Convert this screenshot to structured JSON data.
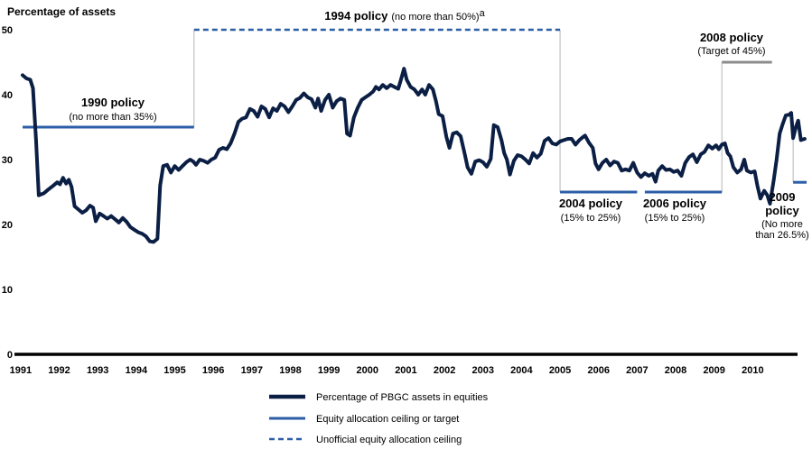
{
  "chart_data": {
    "type": "line",
    "ylabel": "Percentage of assets",
    "ylim": [
      0,
      50
    ],
    "yticks": [
      0,
      10,
      20,
      30,
      40,
      50
    ],
    "xlim": [
      1990.55,
      2010.5
    ],
    "year_labels": [
      "1991",
      "1992",
      "1993",
      "1994",
      "1995",
      "1996",
      "1997",
      "1998",
      "1999",
      "2000",
      "2001",
      "2002",
      "2003",
      "2004",
      "2005",
      "2006",
      "2007",
      "2008",
      "2009",
      "2010"
    ],
    "series": [
      {
        "name": "Percentage of PBGC assets in equities",
        "color": "#0b1f45",
        "points": [
          [
            1990.55,
            43.0
          ],
          [
            1990.65,
            42.5
          ],
          [
            1990.75,
            42.3
          ],
          [
            1990.82,
            41.0
          ],
          [
            1990.9,
            33.0
          ],
          [
            1990.97,
            24.5
          ],
          [
            1991.1,
            24.8
          ],
          [
            1991.2,
            25.3
          ],
          [
            1991.35,
            26.0
          ],
          [
            1991.45,
            26.5
          ],
          [
            1991.52,
            26.2
          ],
          [
            1991.6,
            27.2
          ],
          [
            1991.68,
            26.3
          ],
          [
            1991.75,
            26.9
          ],
          [
            1991.82,
            25.8
          ],
          [
            1991.9,
            22.8
          ],
          [
            1992.0,
            22.3
          ],
          [
            1992.1,
            21.8
          ],
          [
            1992.2,
            22.2
          ],
          [
            1992.3,
            22.9
          ],
          [
            1992.38,
            22.6
          ],
          [
            1992.45,
            20.5
          ],
          [
            1992.55,
            21.7
          ],
          [
            1992.65,
            21.3
          ],
          [
            1992.75,
            20.9
          ],
          [
            1992.85,
            21.3
          ],
          [
            1992.95,
            20.8
          ],
          [
            1993.05,
            20.3
          ],
          [
            1993.15,
            21.0
          ],
          [
            1993.25,
            20.4
          ],
          [
            1993.35,
            19.6
          ],
          [
            1993.45,
            19.2
          ],
          [
            1993.55,
            18.8
          ],
          [
            1993.65,
            18.6
          ],
          [
            1993.75,
            18.2
          ],
          [
            1993.85,
            17.4
          ],
          [
            1993.95,
            17.3
          ],
          [
            1994.05,
            17.8
          ],
          [
            1994.12,
            26.0
          ],
          [
            1994.2,
            29.0
          ],
          [
            1994.3,
            29.2
          ],
          [
            1994.4,
            28.0
          ],
          [
            1994.5,
            29.0
          ],
          [
            1994.6,
            28.4
          ],
          [
            1994.7,
            29.0
          ],
          [
            1994.8,
            29.6
          ],
          [
            1994.9,
            30.0
          ],
          [
            1994.98,
            29.7
          ],
          [
            1995.05,
            29.2
          ],
          [
            1995.15,
            30.0
          ],
          [
            1995.25,
            29.8
          ],
          [
            1995.35,
            29.5
          ],
          [
            1995.45,
            30.0
          ],
          [
            1995.55,
            30.3
          ],
          [
            1995.65,
            31.5
          ],
          [
            1995.75,
            31.8
          ],
          [
            1995.85,
            31.6
          ],
          [
            1995.95,
            32.5
          ],
          [
            1996.05,
            34.0
          ],
          [
            1996.15,
            35.8
          ],
          [
            1996.25,
            36.3
          ],
          [
            1996.35,
            36.5
          ],
          [
            1996.45,
            37.8
          ],
          [
            1996.55,
            37.5
          ],
          [
            1996.65,
            36.6
          ],
          [
            1996.75,
            38.2
          ],
          [
            1996.85,
            37.8
          ],
          [
            1996.95,
            36.5
          ],
          [
            1997.05,
            37.9
          ],
          [
            1997.15,
            37.5
          ],
          [
            1997.25,
            38.6
          ],
          [
            1997.35,
            38.2
          ],
          [
            1997.45,
            37.3
          ],
          [
            1997.55,
            38.2
          ],
          [
            1997.65,
            39.2
          ],
          [
            1997.75,
            39.5
          ],
          [
            1997.85,
            40.2
          ],
          [
            1997.95,
            39.6
          ],
          [
            1998.05,
            39.3
          ],
          [
            1998.15,
            38.0
          ],
          [
            1998.22,
            39.4
          ],
          [
            1998.3,
            37.5
          ],
          [
            1998.4,
            39.2
          ],
          [
            1998.5,
            40.0
          ],
          [
            1998.6,
            38.0
          ],
          [
            1998.7,
            39.0
          ],
          [
            1998.8,
            39.4
          ],
          [
            1998.9,
            39.2
          ],
          [
            1998.97,
            34.0
          ],
          [
            1999.05,
            33.7
          ],
          [
            1999.15,
            36.5
          ],
          [
            1999.25,
            38.0
          ],
          [
            1999.35,
            39.2
          ],
          [
            1999.45,
            39.6
          ],
          [
            1999.55,
            40.0
          ],
          [
            1999.65,
            40.5
          ],
          [
            1999.72,
            41.2
          ],
          [
            1999.8,
            40.8
          ],
          [
            1999.9,
            41.5
          ],
          [
            2000.0,
            41.0
          ],
          [
            2000.1,
            41.5
          ],
          [
            2000.2,
            41.2
          ],
          [
            2000.3,
            40.9
          ],
          [
            2000.38,
            42.5
          ],
          [
            2000.45,
            44.0
          ],
          [
            2000.52,
            42.3
          ],
          [
            2000.62,
            41.2
          ],
          [
            2000.72,
            40.8
          ],
          [
            2000.82,
            40.0
          ],
          [
            2000.92,
            40.8
          ],
          [
            2001.0,
            40.0
          ],
          [
            2001.1,
            41.5
          ],
          [
            2001.2,
            40.8
          ],
          [
            2001.28,
            39.0
          ],
          [
            2001.35,
            37.0
          ],
          [
            2001.45,
            36.7
          ],
          [
            2001.55,
            33.5
          ],
          [
            2001.63,
            31.8
          ],
          [
            2001.72,
            34.0
          ],
          [
            2001.82,
            34.2
          ],
          [
            2001.92,
            33.6
          ],
          [
            2002.02,
            31.0
          ],
          [
            2002.1,
            28.8
          ],
          [
            2002.2,
            27.8
          ],
          [
            2002.3,
            29.7
          ],
          [
            2002.4,
            29.9
          ],
          [
            2002.5,
            29.6
          ],
          [
            2002.6,
            28.9
          ],
          [
            2002.7,
            30.1
          ],
          [
            2002.78,
            35.3
          ],
          [
            2002.88,
            35.0
          ],
          [
            2002.98,
            33.0
          ],
          [
            2003.05,
            31.0
          ],
          [
            2003.12,
            30.0
          ],
          [
            2003.2,
            27.7
          ],
          [
            2003.3,
            29.8
          ],
          [
            2003.4,
            30.7
          ],
          [
            2003.5,
            30.5
          ],
          [
            2003.6,
            30.0
          ],
          [
            2003.7,
            29.4
          ],
          [
            2003.8,
            31.0
          ],
          [
            2003.9,
            30.3
          ],
          [
            2004.0,
            30.9
          ],
          [
            2004.1,
            32.9
          ],
          [
            2004.2,
            33.3
          ],
          [
            2004.3,
            32.5
          ],
          [
            2004.4,
            32.3
          ],
          [
            2004.5,
            32.8
          ],
          [
            2004.6,
            33.0
          ],
          [
            2004.7,
            33.2
          ],
          [
            2004.8,
            33.2
          ],
          [
            2004.9,
            32.3
          ],
          [
            2005.0,
            33.0
          ],
          [
            2005.1,
            33.5
          ],
          [
            2005.15,
            33.7
          ],
          [
            2005.25,
            32.6
          ],
          [
            2005.35,
            31.8
          ],
          [
            2005.42,
            29.4
          ],
          [
            2005.5,
            28.5
          ],
          [
            2005.6,
            29.5
          ],
          [
            2005.7,
            30.0
          ],
          [
            2005.8,
            29.1
          ],
          [
            2005.9,
            29.7
          ],
          [
            2006.0,
            29.5
          ],
          [
            2006.1,
            28.3
          ],
          [
            2006.2,
            28.5
          ],
          [
            2006.3,
            28.3
          ],
          [
            2006.4,
            29.5
          ],
          [
            2006.5,
            28.0
          ],
          [
            2006.6,
            27.3
          ],
          [
            2006.7,
            27.9
          ],
          [
            2006.8,
            27.5
          ],
          [
            2006.9,
            27.8
          ],
          [
            2006.98,
            26.6
          ],
          [
            2007.05,
            28.3
          ],
          [
            2007.15,
            29.0
          ],
          [
            2007.25,
            28.4
          ],
          [
            2007.35,
            28.5
          ],
          [
            2007.45,
            28.1
          ],
          [
            2007.55,
            28.3
          ],
          [
            2007.65,
            27.5
          ],
          [
            2007.75,
            29.5
          ],
          [
            2007.85,
            30.4
          ],
          [
            2007.95,
            30.8
          ],
          [
            2008.05,
            29.6
          ],
          [
            2008.15,
            30.8
          ],
          [
            2008.25,
            31.2
          ],
          [
            2008.35,
            32.2
          ],
          [
            2008.45,
            31.7
          ],
          [
            2008.55,
            32.2
          ],
          [
            2008.62,
            31.6
          ],
          [
            2008.7,
            32.3
          ],
          [
            2008.78,
            32.5
          ],
          [
            2008.85,
            31.0
          ],
          [
            2008.92,
            30.5
          ],
          [
            2009.0,
            28.8
          ],
          [
            2009.1,
            28.0
          ],
          [
            2009.2,
            28.5
          ],
          [
            2009.28,
            30.0
          ],
          [
            2009.35,
            28.3
          ],
          [
            2009.45,
            28.0
          ],
          [
            2009.55,
            28.2
          ],
          [
            2009.62,
            26.0
          ],
          [
            2009.7,
            24.0
          ],
          [
            2009.8,
            25.2
          ],
          [
            2009.88,
            24.5
          ],
          [
            2009.95,
            23.2
          ],
          [
            2010.05,
            27.0
          ],
          [
            2010.12,
            30.0
          ],
          [
            2010.2,
            34.0
          ],
          [
            2010.28,
            35.5
          ],
          [
            2010.36,
            36.8
          ],
          [
            2010.44,
            36.9
          ],
          [
            2010.5,
            37.2
          ],
          [
            2010.55,
            33.3
          ],
          [
            2010.62,
            35.0
          ],
          [
            2010.68,
            36.0
          ],
          [
            2010.75,
            33.0
          ],
          [
            2010.85,
            33.2
          ]
        ]
      }
    ],
    "policies": [
      {
        "title": "1990 policy",
        "subtitle": "(no more than 35%)",
        "value": 35,
        "x_start": 1990.55,
        "x_end": 1995.0,
        "style": "solid",
        "color": "#2b5ea7"
      },
      {
        "title": "1994 policy",
        "subtitle": "(no more than 50%)",
        "superscript": "a",
        "value": 50,
        "x_start": 1995.0,
        "x_end": 2004.5,
        "style": "dashed",
        "color": "#2b5ea7"
      },
      {
        "title": "2004 policy",
        "subtitle": "(15% to 25%)",
        "value": 25,
        "x_start": 2004.5,
        "x_end": 2006.5,
        "style": "solid",
        "color": "#2b5ea7"
      },
      {
        "title": "2006 policy",
        "subtitle": "(15% to 25%)",
        "value": 25,
        "x_start": 2006.7,
        "x_end": 2008.7,
        "style": "solid",
        "color": "#2b5ea7"
      },
      {
        "title": "2008 policy",
        "subtitle": "(Target of 45%)",
        "value": 45,
        "x_start": 2008.7,
        "x_end": 2010.0,
        "style": "solid",
        "color": "#8c8c8c"
      },
      {
        "title": "2009",
        "title2": "policy",
        "subtitle": "(No more",
        "subtitle2": "than 26.5%)",
        "value": 26.5,
        "x_start": 2010.55,
        "x_end": 2010.9,
        "style": "solid",
        "color": "#2b5ea7"
      }
    ],
    "legend": [
      {
        "label": "Percentage of PBGC assets in equities",
        "style": "thick",
        "color": "#0b1f45"
      },
      {
        "label": "Equity allocation ceiling or target",
        "style": "solid",
        "color": "#2b5ea7"
      },
      {
        "label": "Unofficial equity allocation ceiling",
        "style": "dashed",
        "color": "#2b5ea7"
      }
    ]
  }
}
